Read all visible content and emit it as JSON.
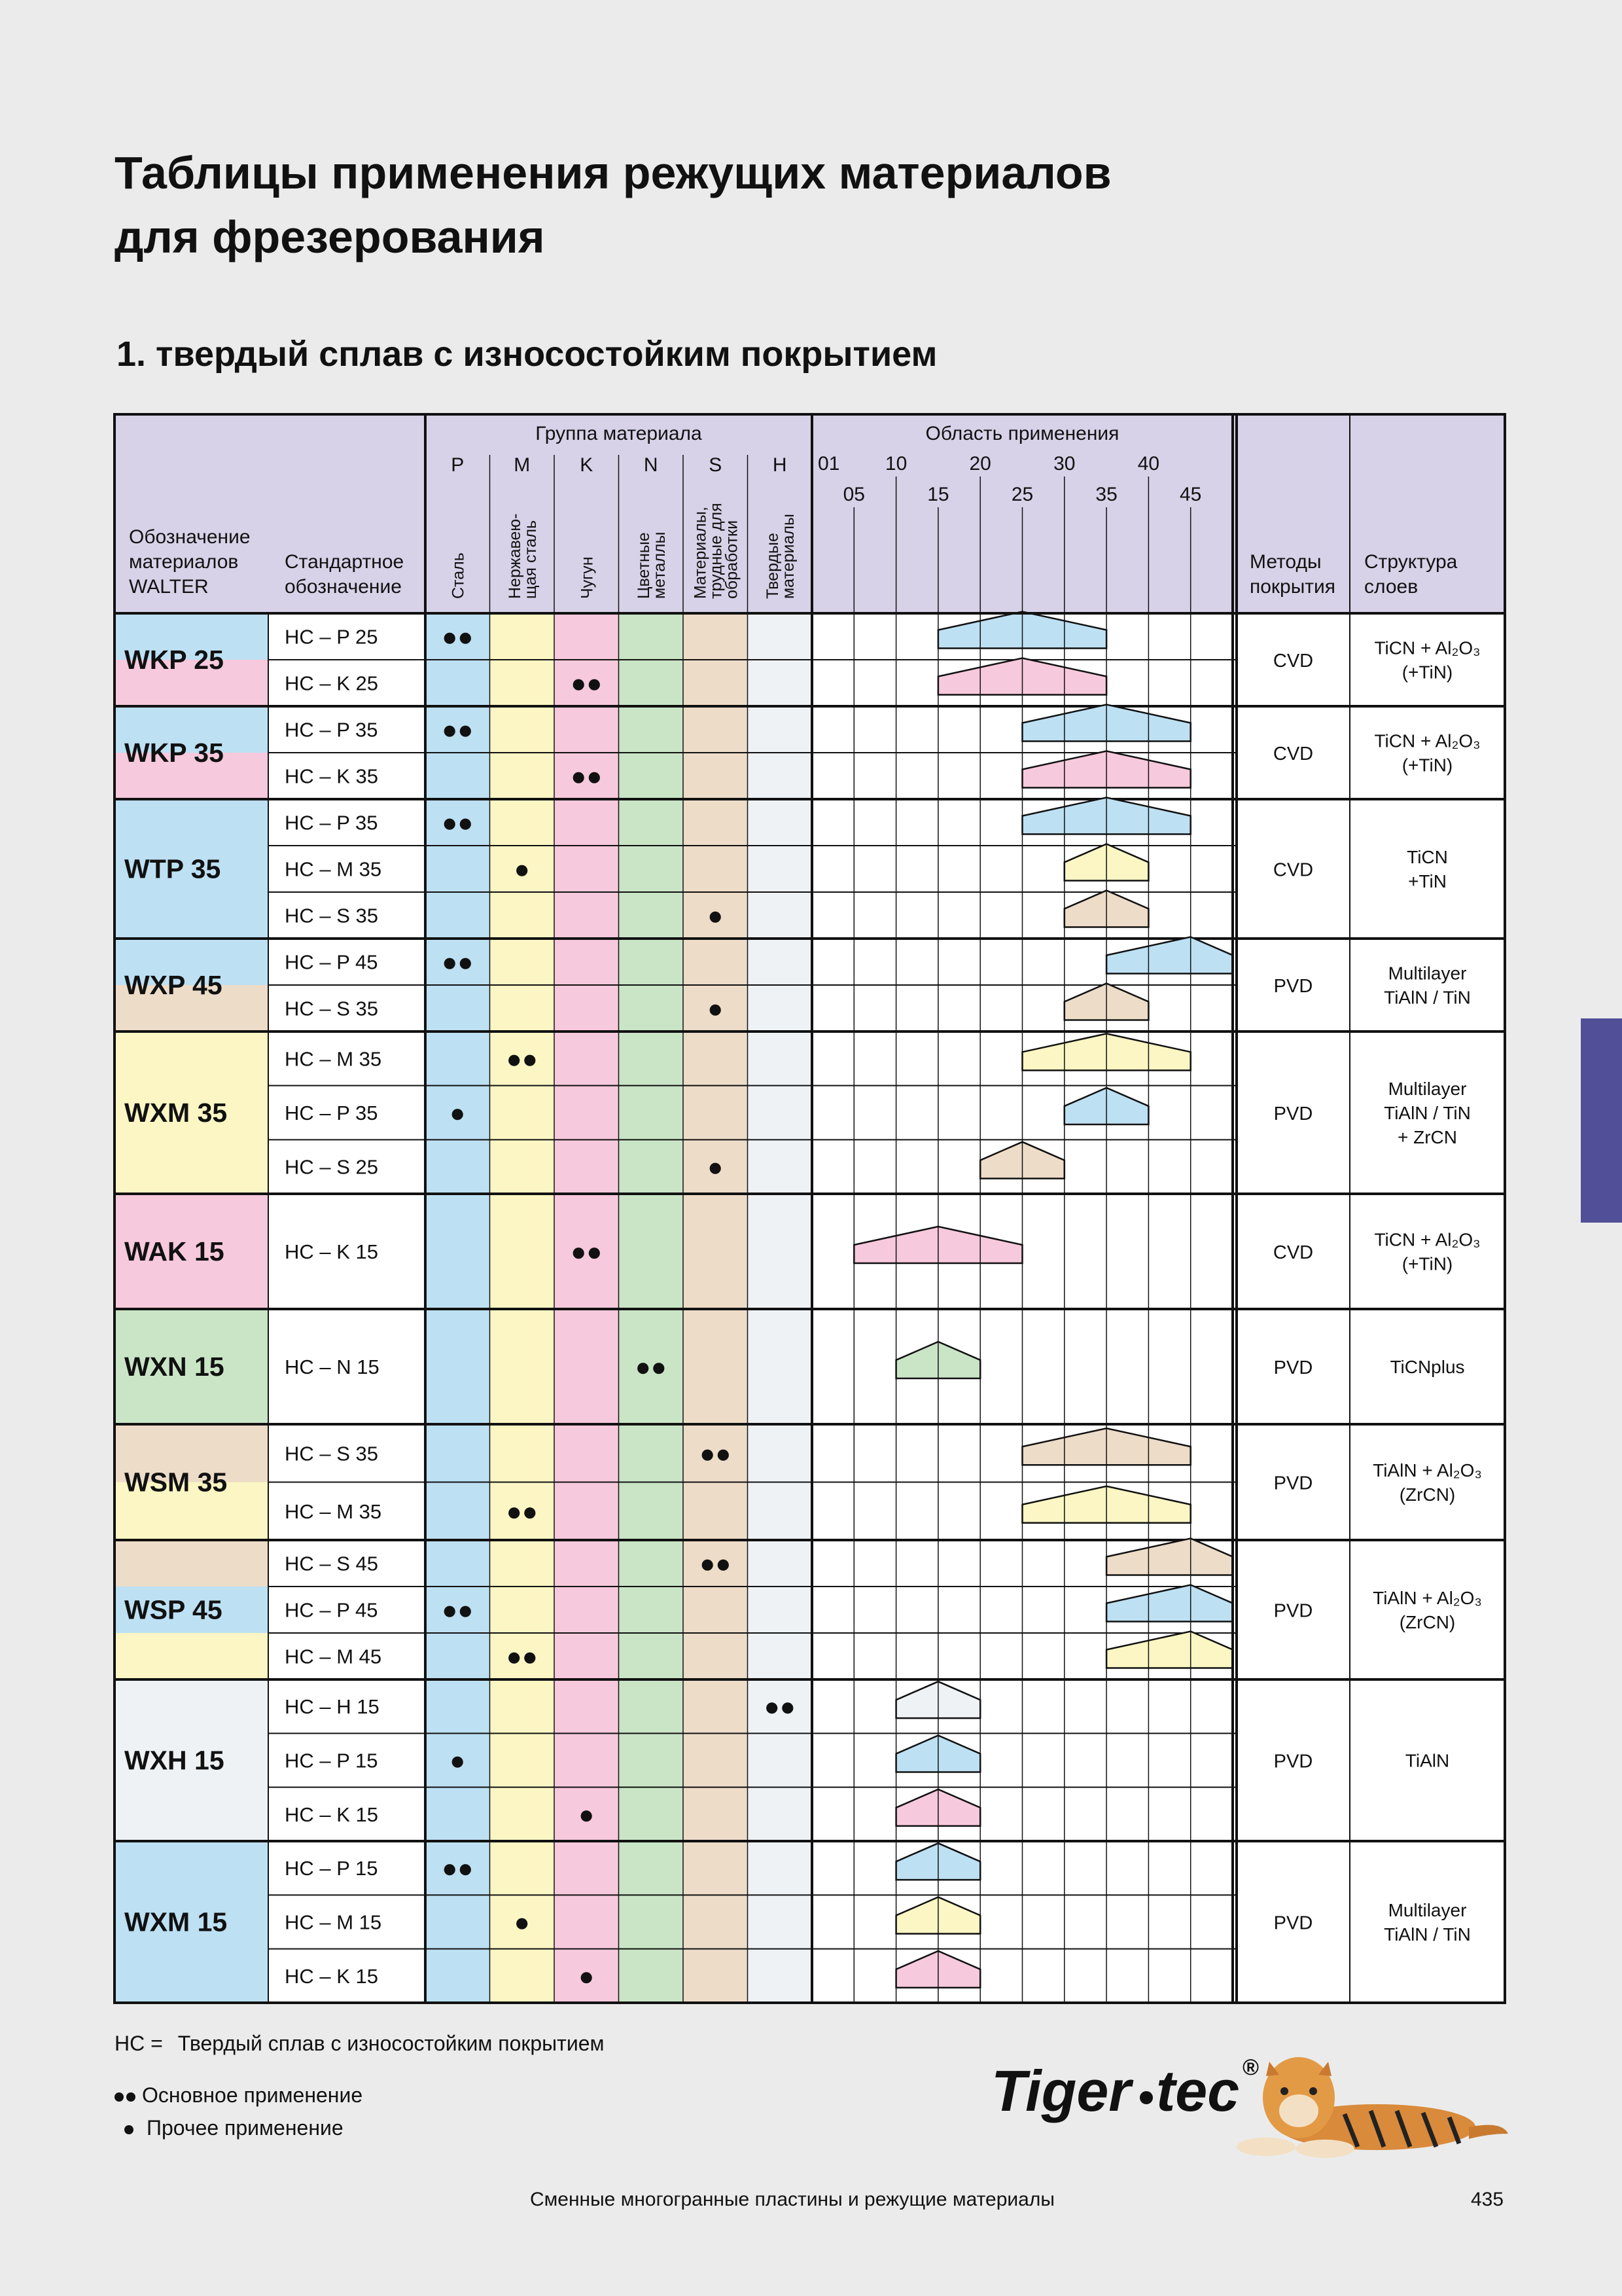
{
  "title": {
    "line1": "Таблицы применения режущих материалов",
    "line2": "для фрезерования"
  },
  "subtitle": "1. твердый сплав с износостойким покрытием",
  "header": {
    "designation": [
      "Обозначение",
      "материалов",
      "WALTER"
    ],
    "standard": [
      "Стандартное",
      "обозначение"
    ],
    "material_group_title": "Группа материала",
    "application_title": "Область применения",
    "coating_methods": [
      "Методы",
      "покрытия"
    ],
    "layer_structure": [
      "Структура",
      "слоев"
    ],
    "groups": [
      {
        "letter": "P",
        "label": [
          "Сталь"
        ],
        "color": "#bde0f3"
      },
      {
        "letter": "M",
        "label": [
          "Нержавею-",
          "щая сталь"
        ],
        "color": "#fbf6c3"
      },
      {
        "letter": "K",
        "label": [
          "Чугун"
        ],
        "color": "#f7c9dc"
      },
      {
        "letter": "N",
        "label": [
          "Цветные",
          "металлы"
        ],
        "color": "#c9e5c6"
      },
      {
        "letter": "S",
        "label": [
          "Материалы,",
          "трудные для",
          "обработки"
        ],
        "color": "#eddcc8"
      },
      {
        "letter": "H",
        "label": [
          "Твердые",
          "материалы"
        ],
        "color": "#eef2f5"
      }
    ],
    "scale_top": [
      "01",
      "10",
      "20",
      "30",
      "40"
    ],
    "scale_bottom": [
      "05",
      "15",
      "25",
      "35",
      "45"
    ]
  },
  "colors": {
    "header_bg": "#d7d2e8",
    "accent": "#524f99"
  },
  "grades": [
    {
      "name": "WKP 25",
      "method": "CVD",
      "layers": [
        "TiCN + Al₂O₃",
        "(+TiN)"
      ],
      "rows": [
        {
          "std": "HC – P 25",
          "group": "P",
          "marks": "●●",
          "from": 15,
          "to": 35,
          "peak": 25
        },
        {
          "std": "HC – K 25",
          "group": "K",
          "marks": "●●",
          "from": 15,
          "to": 35,
          "peak": 25
        }
      ]
    },
    {
      "name": "WKP 35",
      "method": "CVD",
      "layers": [
        "TiCN + Al₂O₃",
        "(+TiN)"
      ],
      "rows": [
        {
          "std": "HC – P 35",
          "group": "P",
          "marks": "●●",
          "from": 25,
          "to": 45,
          "peak": 35
        },
        {
          "std": "HC – K 35",
          "group": "K",
          "marks": "●●",
          "from": 25,
          "to": 45,
          "peak": 35
        }
      ]
    },
    {
      "name": "WTP 35",
      "method": "CVD",
      "layers": [
        "TiCN",
        "+TiN"
      ],
      "rows": [
        {
          "std": "HC – P 35",
          "group": "P",
          "marks": "●●",
          "from": 25,
          "to": 45,
          "peak": 35
        },
        {
          "std": "HC – M 35",
          "group": "M",
          "marks": "●",
          "from": 30,
          "to": 40,
          "peak": 35
        },
        {
          "std": "HC – S 35",
          "group": "S",
          "marks": "●",
          "from": 30,
          "to": 40,
          "peak": 35
        }
      ]
    },
    {
      "name": "WXP 45",
      "method": "PVD",
      "layers": [
        "Multilayer",
        "TiAlN / TiN"
      ],
      "rows": [
        {
          "std": "HC – P 45",
          "group": "P",
          "marks": "●●",
          "from": 35,
          "to": 50,
          "peak": 45
        },
        {
          "std": "HC – S 35",
          "group": "S",
          "marks": "●",
          "from": 30,
          "to": 40,
          "peak": 35
        }
      ]
    },
    {
      "name": "WXM 35",
      "method": "PVD",
      "layers": [
        "Multilayer",
        "TiAlN / TiN",
        "+ ZrCN"
      ],
      "rows": [
        {
          "std": "HC – M 35",
          "group": "M",
          "marks": "●●",
          "from": 25,
          "to": 45,
          "peak": 35
        },
        {
          "std": "HC – P 35",
          "group": "P",
          "marks": "●",
          "from": 30,
          "to": 40,
          "peak": 35
        },
        {
          "std": "HC – S 25",
          "group": "S",
          "marks": "●",
          "from": 20,
          "to": 30,
          "peak": 25
        }
      ]
    },
    {
      "name": "WAK 15",
      "method": "CVD",
      "layers": [
        "TiCN + Al₂O₃",
        "(+TiN)"
      ],
      "rows": [
        {
          "std": "HC – K 15",
          "group": "K",
          "marks": "●●",
          "from": 5,
          "to": 25,
          "peak": 15
        }
      ]
    },
    {
      "name": "WXN 15",
      "method": "PVD",
      "layers": [
        "TiCNplus"
      ],
      "rows": [
        {
          "std": "HC – N 15",
          "group": "N",
          "marks": "●●",
          "from": 10,
          "to": 20,
          "peak": 15
        }
      ]
    },
    {
      "name": "WSM 35",
      "method": "PVD",
      "layers": [
        "TiAlN + Al₂O₃",
        "(ZrCN)"
      ],
      "rows": [
        {
          "std": "HC – S 35",
          "group": "S",
          "marks": "●●",
          "from": 25,
          "to": 45,
          "peak": 35
        },
        {
          "std": "HC – M 35",
          "group": "M",
          "marks": "●●",
          "from": 25,
          "to": 45,
          "peak": 35
        }
      ]
    },
    {
      "name": "WSP 45",
      "method": "PVD",
      "layers": [
        "TiAlN + Al₂O₃",
        "(ZrCN)"
      ],
      "rows": [
        {
          "std": "HC – S 45",
          "group": "S",
          "marks": "●●",
          "from": 35,
          "to": 50,
          "peak": 45
        },
        {
          "std": "HC – P 45",
          "group": "P",
          "marks": "●●",
          "from": 35,
          "to": 50,
          "peak": 45
        },
        {
          "std": "HC – M 45",
          "group": "M",
          "marks": "●●",
          "from": 35,
          "to": 50,
          "peak": 45
        }
      ]
    },
    {
      "name": "WXH 15",
      "method": "PVD",
      "layers": [
        "TiAlN"
      ],
      "rows": [
        {
          "std": "HC – H 15",
          "group": "H",
          "marks": "●●",
          "from": 10,
          "to": 20,
          "peak": 15
        },
        {
          "std": "HC – P 15",
          "group": "P",
          "marks": "●",
          "from": 10,
          "to": 20,
          "peak": 15
        },
        {
          "std": "HC – K 15",
          "group": "K",
          "marks": "●",
          "from": 10,
          "to": 20,
          "peak": 15
        }
      ]
    },
    {
      "name": "WXM 15",
      "method": "PVD",
      "layers": [
        "Multilayer",
        "TiAlN / TiN"
      ],
      "rows": [
        {
          "std": "HC – P 15",
          "group": "P",
          "marks": "●●",
          "from": 10,
          "to": 20,
          "peak": 15
        },
        {
          "std": "HC – M 15",
          "group": "M",
          "marks": "●",
          "from": 10,
          "to": 20,
          "peak": 15
        },
        {
          "std": "HC – K 15",
          "group": "K",
          "marks": "●",
          "from": 10,
          "to": 20,
          "peak": 15
        }
      ]
    }
  ],
  "legend": {
    "hc_key": "HC =",
    "hc_text": "Твердый сплав с износостойким покрытием",
    "primary": "Основное применение",
    "secondary": "Прочее применение"
  },
  "logo": {
    "text_tiger": "Tiger",
    "text_tec": "tec",
    "reg": "®"
  },
  "footer": {
    "text": "Сменные многогранные пластины и режущие материалы",
    "page": "435"
  }
}
